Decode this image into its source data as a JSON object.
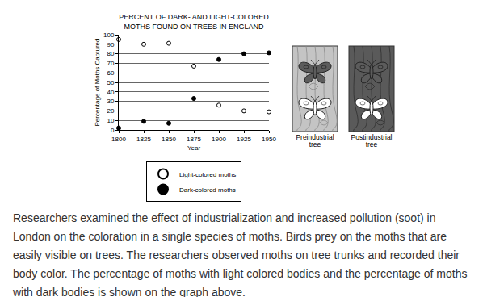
{
  "chart_data": {
    "type": "scatter",
    "title": [
      "PERCENT OF DARK- AND LIGHT-COLORED",
      "MOTHS FOUND ON TREES IN ENGLAND"
    ],
    "x_label": "Year",
    "y_label": "Percentage of Moths Captured",
    "x": [
      1800,
      1825,
      1850,
      1875,
      1900,
      1925,
      1950
    ],
    "series": [
      {
        "name": "Light-colored moths",
        "color": "#000000",
        "marker": "circle-open",
        "values": [
          95,
          90,
          91,
          67,
          26,
          20,
          19
        ]
      },
      {
        "name": "Dark-colored moths",
        "color": "#000000",
        "marker": "circle",
        "values": [
          2,
          9,
          7,
          33,
          74,
          80,
          81
        ]
      }
    ],
    "xlim": [
      1800,
      1950
    ],
    "xticks": [
      1800,
      1825,
      1850,
      1875,
      1900,
      1925,
      1950
    ],
    "ylim": [
      0,
      100
    ],
    "yticks": [
      0,
      10,
      20,
      30,
      40,
      50,
      60,
      70,
      80,
      90,
      100
    ],
    "grid": true,
    "legend": "bottom"
  },
  "illustration": {
    "trees": [
      {
        "label": [
          "Preindustrial",
          "tree"
        ],
        "bark": "light"
      },
      {
        "label": [
          "Postindustrial",
          "tree"
        ],
        "bark": "dark"
      }
    ]
  },
  "text": [
    "Researchers examined the effect of industrialization and increased pollution (soot) in",
    "London on the coloration in a single species of moths. Birds prey on the moths that are",
    "easily visible on trees. The researchers observed moths on tree trunks and recorded their",
    "body color. The percentage of moths with light colored bodies and the percentage of moths",
    "with dark bodies is shown on the graph above."
  ]
}
